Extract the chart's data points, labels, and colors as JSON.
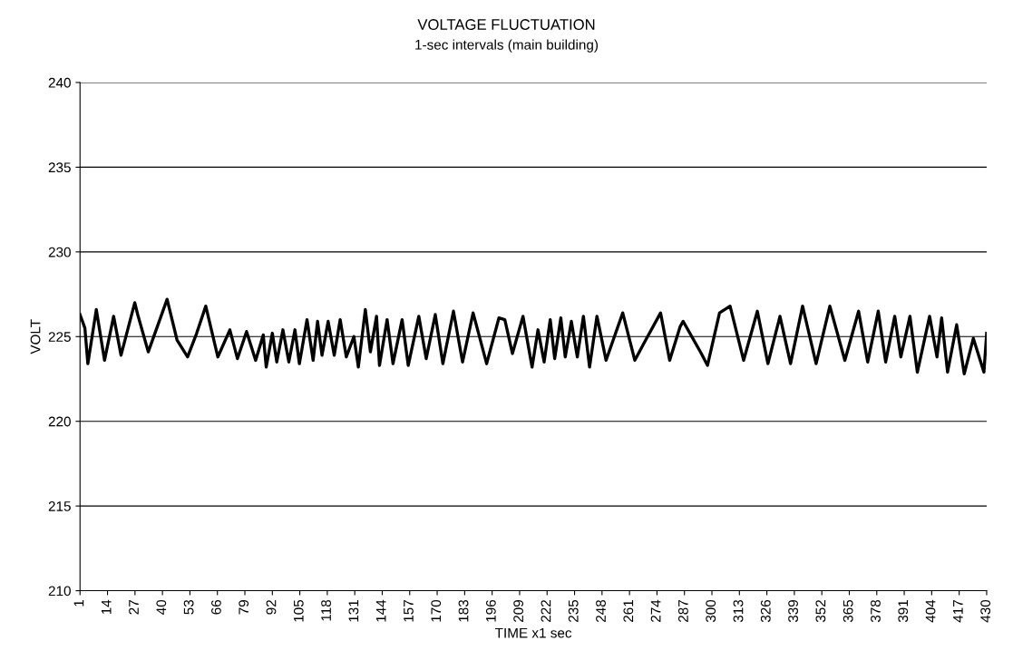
{
  "chart_data": {
    "type": "line",
    "title": "VOLTAGE FLUCTUATION",
    "subtitle": "1-sec intervals (main building)",
    "xlabel": "TIME x1 sec",
    "ylabel": "VOLT",
    "series": [
      {
        "color": "#000000",
        "x": [
          1,
          3.3,
          4.7,
          8.7,
          12.6,
          16.9,
          20.4,
          26.9,
          28.3,
          33.3,
          42.2,
          46.9,
          51.9,
          56.2,
          60.5,
          66.2,
          71.9,
          75.5,
          79.8,
          84.1,
          87.7,
          89.1,
          92,
          94.1,
          97,
          99.8,
          102.7,
          104.8,
          108.4,
          111.3,
          113.4,
          115.5,
          118.4,
          121.3,
          124.1,
          127,
          130.6,
          132.7,
          136,
          138.4,
          141.3,
          142.7,
          146.3,
          149.1,
          153.4,
          156.3,
          161.3,
          164.8,
          169.1,
          172.7,
          177.7,
          182,
          187,
          193.4,
          199.2,
          202,
          205.6,
          210.6,
          214.9,
          217.7,
          220.6,
          223.5,
          225.6,
          228.5,
          230.6,
          233.5,
          236.3,
          239.2,
          242.1,
          245.6,
          249.9,
          257.8,
          263.5,
          267.8,
          275.7,
          280,
          285,
          286.4,
          295,
          297.9,
          303.6,
          308.6,
          315,
          321.5,
          326.5,
          332.2,
          337.2,
          342.9,
          349.3,
          355.8,
          362.9,
          369.4,
          373.7,
          378.7,
          382.2,
          386.5,
          389.4,
          393.7,
          397.2,
          403,
          406.5,
          408.7,
          411.5,
          415.8,
          419.4,
          423.7,
          428.7,
          430
        ],
        "values": [
          226.3,
          225.5,
          223.4,
          226.6,
          223.6,
          226.2,
          223.9,
          227.0,
          226.3,
          224.1,
          227.2,
          224.8,
          223.8,
          225.2,
          226.8,
          223.8,
          225.4,
          223.7,
          225.3,
          223.6,
          225.1,
          223.2,
          225.2,
          223.5,
          225.4,
          223.5,
          225.4,
          223.4,
          226.0,
          223.6,
          225.9,
          223.9,
          225.9,
          223.9,
          226.0,
          223.8,
          225.0,
          223.2,
          226.6,
          224.1,
          226.2,
          223.3,
          226.0,
          223.4,
          226.0,
          223.3,
          226.2,
          223.7,
          226.3,
          223.4,
          226.5,
          223.5,
          226.4,
          223.4,
          226.1,
          226.0,
          224.0,
          226.2,
          223.2,
          225.4,
          223.5,
          226.0,
          223.7,
          226.1,
          223.8,
          225.9,
          223.8,
          226.2,
          223.2,
          226.2,
          223.6,
          226.4,
          223.6,
          224.6,
          226.4,
          223.6,
          225.6,
          225.9,
          224.0,
          223.3,
          226.4,
          226.8,
          223.6,
          226.5,
          223.4,
          226.2,
          223.4,
          226.8,
          223.4,
          226.8,
          223.6,
          226.5,
          223.5,
          226.5,
          223.5,
          226.2,
          223.8,
          226.2,
          222.9,
          226.2,
          223.8,
          226.1,
          222.9,
          225.7,
          222.8,
          224.9,
          222.9,
          225.2
        ]
      }
    ],
    "xlim": [
      1,
      430
    ],
    "xticks": [
      1,
      14,
      27,
      40,
      53,
      66,
      79,
      92,
      105,
      118,
      131,
      144,
      157,
      170,
      183,
      196,
      209,
      222,
      235,
      248,
      261,
      274,
      287,
      300,
      313,
      326,
      339,
      352,
      365,
      378,
      391,
      404,
      417,
      430
    ],
    "ylim": [
      210,
      240
    ],
    "yticks": [
      210,
      215,
      220,
      225,
      230,
      235,
      240
    ],
    "grid": "y"
  }
}
